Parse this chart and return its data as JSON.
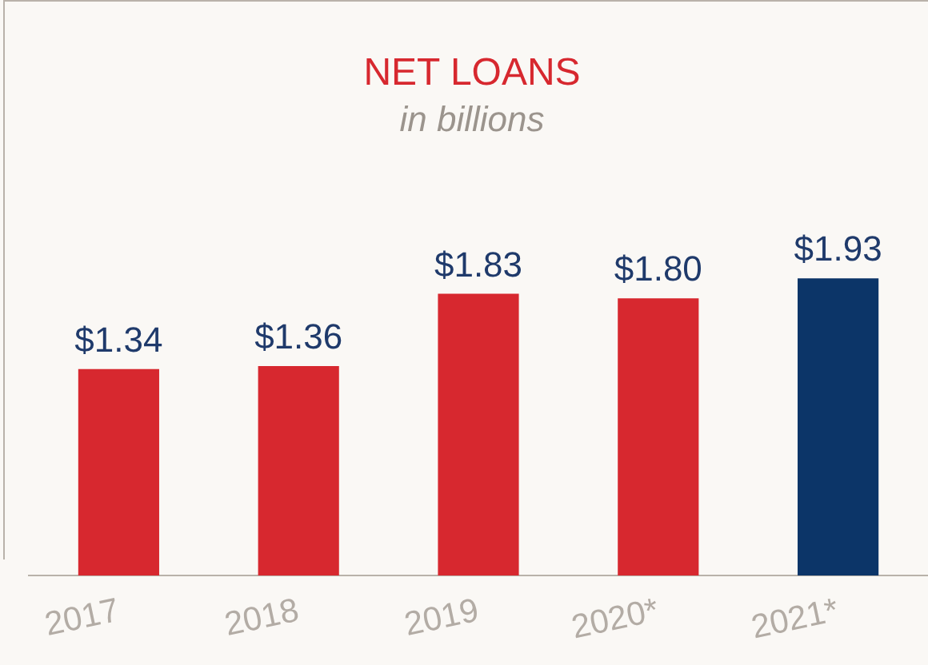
{
  "chart_data": {
    "type": "bar",
    "title": "NET LOANS",
    "subtitle": "in billions",
    "categories": [
      "2017",
      "2018",
      "2019",
      "2020*",
      "2021*"
    ],
    "values": [
      1.34,
      1.36,
      1.83,
      1.8,
      1.93
    ],
    "value_labels": [
      "$1.34",
      "$1.36",
      "$1.83",
      "$1.80",
      "$1.93"
    ],
    "colors": [
      "#d7282f",
      "#d7282f",
      "#d7282f",
      "#d7282f",
      "#0c3568"
    ],
    "grid": false,
    "legend": false
  }
}
